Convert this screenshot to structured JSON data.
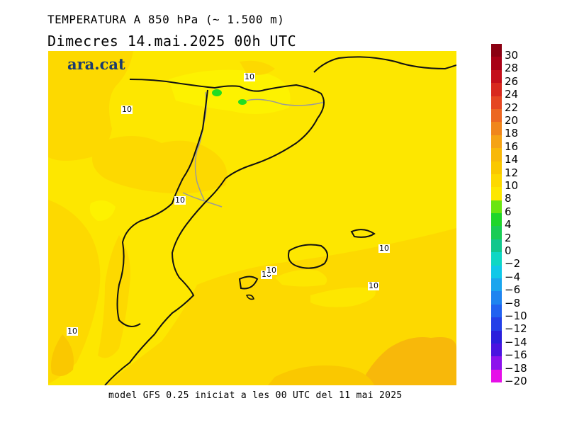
{
  "header": {
    "title": "TEMPERATURA A 850 hPa (~ 1.500 m)",
    "subtitle": "Dimecres   14.mai.2025 00h UTC"
  },
  "footer": {
    "text": "model GFS 0.25 iniciat a les 00 UTC del 11 mai 2025"
  },
  "map": {
    "brand": "ara.cat",
    "contour_labels": [
      "10",
      "10",
      "10",
      "10",
      "10",
      "10",
      "10",
      "10",
      "10"
    ]
  },
  "legend": {
    "labels": [
      "30",
      "28",
      "26",
      "24",
      "22",
      "20",
      "18",
      "16",
      "14",
      "12",
      "10",
      "8",
      "6",
      "4",
      "2",
      "0",
      "−2",
      "−4",
      "−6",
      "−8",
      "−10",
      "−12",
      "−14",
      "−16",
      "−18",
      "−20"
    ],
    "colors": [
      "#8b0012",
      "#a80016",
      "#c40f1a",
      "#d8291e",
      "#e54722",
      "#ec6722",
      "#f0861c",
      "#f5a315",
      "#f8b80a",
      "#fac800",
      "#fdd900",
      "#fde700",
      "#6ae510",
      "#1fd62a",
      "#1acc55",
      "#12c78d",
      "#0fd7c4",
      "#10c8e8",
      "#1aa5ee",
      "#1f84f0",
      "#2262f0",
      "#2440e8",
      "#2a1fdc",
      "#4a14e0",
      "#8d12ec",
      "#e60fe8"
    ]
  }
}
